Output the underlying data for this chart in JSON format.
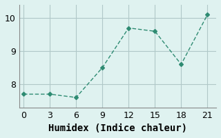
{
  "xlabel": "Humidex (Indice chaleur)",
  "ylabel": "",
  "x": [
    0,
    3,
    6,
    9,
    12,
    15,
    18,
    21
  ],
  "y": [
    7.7,
    7.7,
    7.6,
    8.5,
    9.7,
    9.6,
    8.6,
    10.1
  ],
  "line_color": "#2e8b72",
  "marker": "D",
  "marker_size": 3,
  "bg_color": "#dff2f0",
  "grid_color": "#b0c8c8",
  "xlim": [
    -0.5,
    22
  ],
  "ylim": [
    7.3,
    10.4
  ],
  "xticks": [
    0,
    3,
    6,
    9,
    12,
    15,
    18,
    21
  ],
  "yticks": [
    8,
    9,
    10
  ],
  "tick_fontsize": 9,
  "xlabel_fontsize": 10
}
